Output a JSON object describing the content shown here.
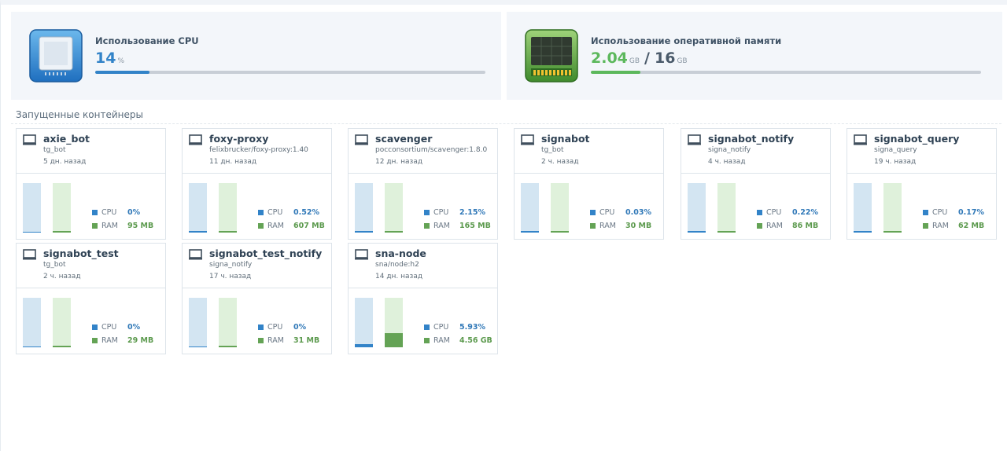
{
  "cpu_panel": {
    "icon": "cpu-chip-icon",
    "title": "Использование CPU",
    "value": "14",
    "unit": "%",
    "percent": 14,
    "color": "#3283c8"
  },
  "ram_panel": {
    "icon": "memory-module-icon",
    "title": "Использование оперативной памяти",
    "used": "2.04",
    "used_unit": "GB",
    "separator": "/",
    "total": "16",
    "total_unit": "GB",
    "fraction": 0.1275,
    "color": "#5cb85c"
  },
  "containers_section": {
    "title": "Запущенные контейнеры"
  },
  "stat_labels": {
    "cpu": "CPU",
    "ram": "RAM"
  },
  "containers": [
    {
      "name": "axie_bot",
      "image": "tg_bot",
      "started": "5 дн. назад",
      "cpu": "0%",
      "ram": "95 MB",
      "cpu_pct": 0,
      "ram_pct": 1
    },
    {
      "name": "foxy-proxy",
      "image": "felixbrucker/foxy-proxy:1.40",
      "started": "11 дн. назад",
      "cpu": "0.52%",
      "ram": "607 MB",
      "cpu_pct": 0.52,
      "ram_pct": 3.7
    },
    {
      "name": "scavenger",
      "image": "pocconsortium/scavenger:1.8.0",
      "started": "12 дн. назад",
      "cpu": "2.15%",
      "ram": "165 MB",
      "cpu_pct": 2.15,
      "ram_pct": 1.5
    },
    {
      "name": "signabot",
      "image": "tg_bot",
      "started": "2 ч. назад",
      "cpu": "0.03%",
      "ram": "30 MB",
      "cpu_pct": 0.03,
      "ram_pct": 0.5
    },
    {
      "name": "signabot_notify",
      "image": "signa_notify",
      "started": "4 ч. назад",
      "cpu": "0.22%",
      "ram": "86 MB",
      "cpu_pct": 0.22,
      "ram_pct": 0.8
    },
    {
      "name": "signabot_query",
      "image": "signa_query",
      "started": "19 ч. назад",
      "cpu": "0.17%",
      "ram": "62 MB",
      "cpu_pct": 0.17,
      "ram_pct": 0.6
    },
    {
      "name": "signabot_test",
      "image": "tg_bot",
      "started": "2 ч. назад",
      "cpu": "0%",
      "ram": "29 MB",
      "cpu_pct": 0,
      "ram_pct": 0.5
    },
    {
      "name": "signabot_test_notify",
      "image": "signa_notify",
      "started": "17 ч. назад",
      "cpu": "0%",
      "ram": "31 MB",
      "cpu_pct": 0,
      "ram_pct": 0.5
    },
    {
      "name": "sna-node",
      "image": "sna/node:h2",
      "started": "14 дн. назад",
      "cpu": "5.93%",
      "ram": "4.56 GB",
      "cpu_pct": 5.93,
      "ram_pct": 28.5
    }
  ]
}
